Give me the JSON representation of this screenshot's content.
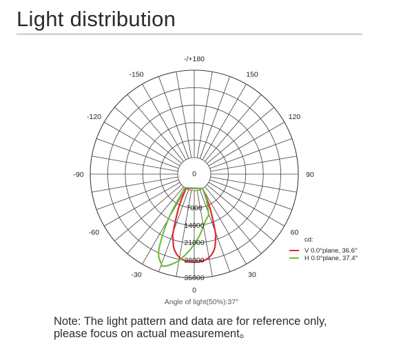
{
  "header": {
    "title": "Light distribution"
  },
  "chart_data": {
    "type": "polar",
    "angle_labels": [
      {
        "angle": 180,
        "text": "-/+180"
      },
      {
        "angle": -150,
        "text": "-150"
      },
      {
        "angle": 150,
        "text": "150"
      },
      {
        "angle": -120,
        "text": "-120"
      },
      {
        "angle": 120,
        "text": "120"
      },
      {
        "angle": -90,
        "text": "-90"
      },
      {
        "angle": 90,
        "text": "90"
      },
      {
        "angle": -60,
        "text": "-60"
      },
      {
        "angle": 60,
        "text": "60"
      },
      {
        "angle": -30,
        "text": "-30"
      },
      {
        "angle": 30,
        "text": "30"
      },
      {
        "angle": 0,
        "text": "0"
      }
    ],
    "radial_ticks": [
      0,
      7000,
      14000,
      21000,
      28000,
      35000
    ],
    "radial_range": [
      0,
      35000
    ],
    "unit": "cd:",
    "series": [
      {
        "name": "V 0.0°plane,  36.6°",
        "color": "#e0262b",
        "angles": [
          -30,
          -25,
          -20,
          -18.3,
          -15,
          -10,
          -5,
          0,
          5,
          10,
          15,
          18.3,
          20,
          25,
          30
        ],
        "values": [
          0,
          8000,
          18000,
          20500,
          24500,
          27300,
          28400,
          28700,
          28400,
          27300,
          24500,
          20500,
          18000,
          8000,
          0
        ]
      },
      {
        "name": "H 0.0°plane,  37.4°",
        "color": "#6cbf3a",
        "angles": [
          -35,
          -30,
          -25,
          -20,
          -18.7,
          -15,
          -10,
          -5,
          0,
          5,
          10,
          15,
          18.7,
          20,
          25,
          30
        ],
        "values": [
          0,
          14000,
          27000,
          31800,
          32300,
          31000,
          28500,
          25000,
          21500,
          18000,
          14500,
          12000,
          11000,
          10000,
          5000,
          0
        ]
      }
    ]
  },
  "caption": "Angle of light(50%):37°",
  "note": {
    "label": "Note:",
    "line1": " The light pattern and data are for reference only,",
    "line2": "please focus on actual measurement。"
  }
}
